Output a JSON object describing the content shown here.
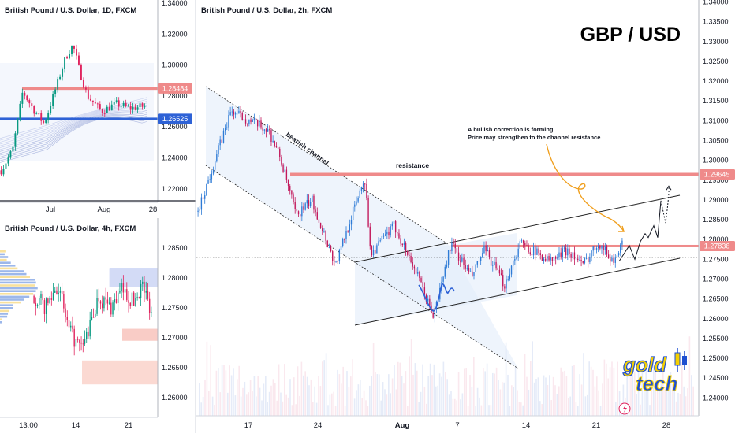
{
  "chart_data": [
    {
      "panel": "daily",
      "type": "candlestick",
      "title": "British Pound / U.S. Dollar, 1D, FXCM",
      "y_ticks": [
        "1.34000",
        "1.32000",
        "1.30000",
        "1.28000",
        "1.26000",
        "1.24000",
        "1.22000"
      ],
      "ylim": [
        1.2113,
        1.342
      ],
      "x_ticks": [
        "Jul",
        "Aug",
        "28"
      ],
      "resistance": {
        "value": 1.28484,
        "label": "1.28484"
      },
      "support": {
        "value": 1.26525,
        "label": "1.26525"
      },
      "close": 1.2735
    },
    {
      "panel": "4h",
      "type": "candlestick",
      "title": "British Pound / U.S. Dollar, 4h, FXCM",
      "y_ticks": [
        "1.28500",
        "1.28000",
        "1.27500",
        "1.27000",
        "1.26500",
        "1.26000"
      ],
      "ylim": [
        1.2567,
        1.29
      ],
      "x_ticks": [
        "13:00",
        "14",
        "21"
      ],
      "close": 1.2735
    },
    {
      "panel": "2h",
      "type": "candlestick",
      "title": "British Pound / U.S. Dollar, 2h, FXCM",
      "y_ticks": [
        "1.34000",
        "1.33500",
        "1.33000",
        "1.32500",
        "1.32000",
        "1.31500",
        "1.31000",
        "1.30500",
        "1.30000",
        "1.29500",
        "1.29000",
        "1.28500",
        "1.28000",
        "1.27500",
        "1.27000",
        "1.26500",
        "1.26000",
        "1.25500",
        "1.25000",
        "1.24500",
        "1.24000"
      ],
      "ylim": [
        1.2355,
        1.3405
      ],
      "x_ticks": [
        "17",
        "24",
        "Aug",
        "7",
        "14",
        "21",
        "28"
      ],
      "resistance": {
        "value": 1.29645,
        "label": "1.29645"
      },
      "current": {
        "value": 1.27836,
        "label": "1.27836"
      },
      "key_price_path": [
        1.287,
        1.3125,
        1.3075,
        1.3005,
        1.286,
        1.29,
        1.2735,
        1.296,
        1.2765,
        1.2835,
        1.273,
        1.2605,
        1.279,
        1.2705,
        1.2775,
        1.2685,
        1.279,
        1.2745,
        1.2775,
        1.2735,
        1.2795,
        1.2745,
        1.2785
      ],
      "projection_path": [
        1.2745,
        1.2785,
        1.275,
        1.2795,
        1.2815,
        1.2805,
        1.2835,
        1.2805,
        1.2898,
        1.2842,
        1.2935
      ],
      "bearish_channel_label": "bearish channel",
      "resistance_label": "resistance",
      "annotation": [
        "A bullish correction is forming",
        "Price may strengthen to the channel resistance"
      ],
      "headline": "GBP / USD"
    }
  ],
  "logo": {
    "line1": "gold",
    "line2": "tech"
  },
  "colors": {
    "bull": "#089981",
    "bear": "#e0245e",
    "bull_2h": "#2e7bd6",
    "bear_2h": "#c2185b",
    "resistance": "#ef8a8a",
    "support": "#2e62d6",
    "orange": "#f0a020",
    "logo_yellow": "#f5d000",
    "logo_blue": "#1f4fd0"
  }
}
